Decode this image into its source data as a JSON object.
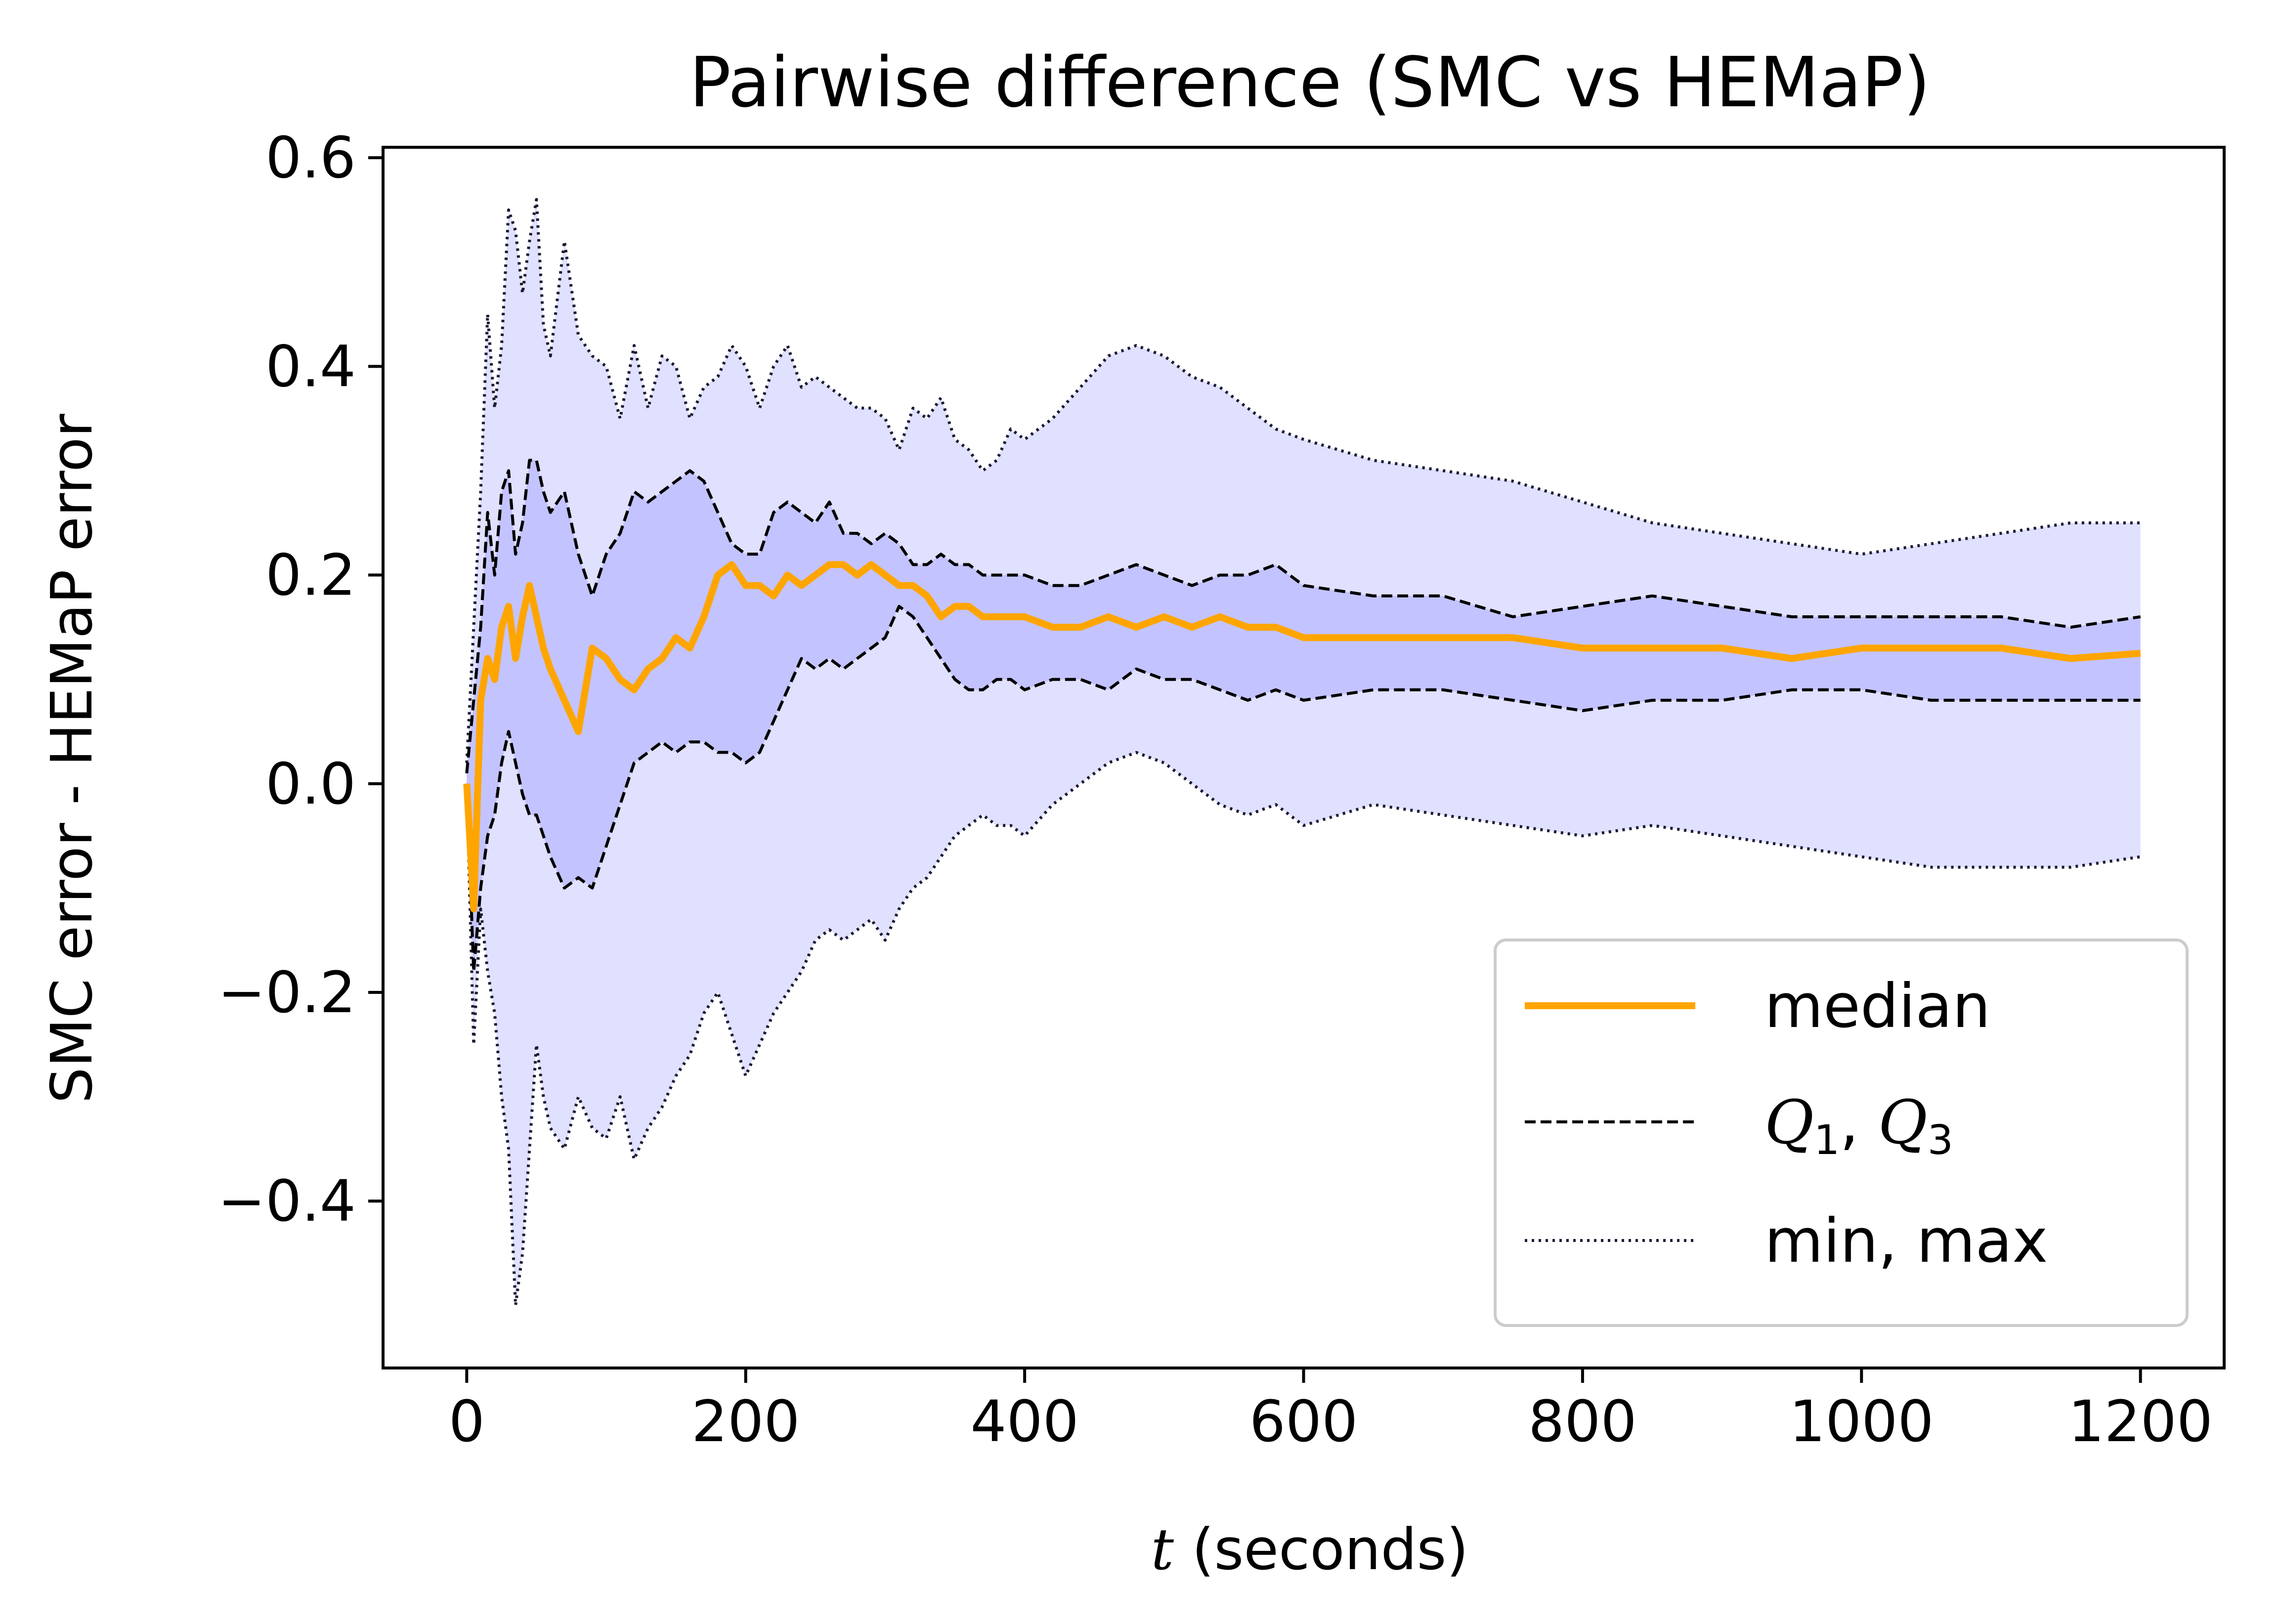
{
  "chart_data": {
    "type": "line",
    "title": "Pairwise difference (SMC vs HEMaP)",
    "xlabel_var": "t",
    "xlabel_rest": " (seconds)",
    "ylabel": "SMC error - HEMaP error",
    "xlim": [
      -60,
      1260
    ],
    "ylim": [
      -0.56,
      0.61
    ],
    "xticks": [
      0,
      200,
      400,
      600,
      800,
      1000,
      1200
    ],
    "xtick_labels": [
      "0",
      "200",
      "400",
      "600",
      "800",
      "1000",
      "1200"
    ],
    "yticks": [
      -0.4,
      -0.2,
      0.0,
      0.2,
      0.4,
      0.6
    ],
    "ytick_labels": [
      "−0.4",
      "−0.2",
      "0.0",
      "0.2",
      "0.4",
      "0.6"
    ],
    "legend": {
      "position": "lower-right",
      "median": "median",
      "quartiles_q": "Q",
      "quartiles_sub1": "1",
      "quartiles_sub3": "3",
      "minmax": "min, max"
    },
    "colors": {
      "median": "#FFA500",
      "iqr_fill": "#C3C3FF",
      "range_fill": "#E0E0FF",
      "quartile_line": "#000000",
      "minmax_line": "#1a1a33"
    },
    "series": [
      {
        "name": "max",
        "x": [
          0,
          5,
          10,
          15,
          20,
          25,
          30,
          35,
          40,
          45,
          50,
          55,
          60,
          70,
          80,
          90,
          100,
          110,
          120,
          130,
          140,
          150,
          160,
          170,
          180,
          190,
          200,
          210,
          220,
          230,
          240,
          250,
          260,
          270,
          280,
          290,
          300,
          310,
          320,
          330,
          340,
          350,
          360,
          370,
          380,
          390,
          400,
          420,
          440,
          460,
          480,
          500,
          520,
          540,
          560,
          580,
          600,
          650,
          700,
          750,
          800,
          850,
          900,
          950,
          1000,
          1050,
          1100,
          1150,
          1200
        ],
        "y": [
          0.02,
          0.15,
          0.28,
          0.45,
          0.36,
          0.42,
          0.55,
          0.53,
          0.47,
          0.52,
          0.56,
          0.44,
          0.41,
          0.52,
          0.43,
          0.41,
          0.4,
          0.35,
          0.42,
          0.36,
          0.41,
          0.4,
          0.35,
          0.38,
          0.39,
          0.42,
          0.4,
          0.36,
          0.4,
          0.42,
          0.38,
          0.39,
          0.38,
          0.37,
          0.36,
          0.36,
          0.35,
          0.32,
          0.36,
          0.35,
          0.37,
          0.33,
          0.32,
          0.3,
          0.31,
          0.34,
          0.33,
          0.35,
          0.38,
          0.41,
          0.42,
          0.41,
          0.39,
          0.38,
          0.36,
          0.34,
          0.33,
          0.31,
          0.3,
          0.29,
          0.27,
          0.25,
          0.24,
          0.23,
          0.22,
          0.23,
          0.24,
          0.25,
          0.25
        ]
      },
      {
        "name": "Q3",
        "x": [
          0,
          5,
          10,
          15,
          20,
          25,
          30,
          35,
          40,
          45,
          50,
          55,
          60,
          70,
          80,
          90,
          100,
          110,
          120,
          130,
          140,
          150,
          160,
          170,
          180,
          190,
          200,
          210,
          220,
          230,
          240,
          250,
          260,
          270,
          280,
          290,
          300,
          310,
          320,
          330,
          340,
          350,
          360,
          370,
          380,
          390,
          400,
          420,
          440,
          460,
          480,
          500,
          520,
          540,
          560,
          580,
          600,
          650,
          700,
          750,
          800,
          850,
          900,
          950,
          1000,
          1050,
          1100,
          1150,
          1200
        ],
        "y": [
          0.01,
          0.08,
          0.15,
          0.26,
          0.2,
          0.28,
          0.3,
          0.22,
          0.25,
          0.31,
          0.31,
          0.28,
          0.26,
          0.28,
          0.22,
          0.18,
          0.22,
          0.24,
          0.28,
          0.27,
          0.28,
          0.29,
          0.3,
          0.29,
          0.26,
          0.23,
          0.22,
          0.22,
          0.26,
          0.27,
          0.26,
          0.25,
          0.27,
          0.24,
          0.24,
          0.23,
          0.24,
          0.23,
          0.21,
          0.21,
          0.22,
          0.21,
          0.21,
          0.2,
          0.2,
          0.2,
          0.2,
          0.19,
          0.19,
          0.2,
          0.21,
          0.2,
          0.19,
          0.2,
          0.2,
          0.21,
          0.19,
          0.18,
          0.18,
          0.16,
          0.17,
          0.18,
          0.17,
          0.16,
          0.16,
          0.16,
          0.16,
          0.15,
          0.16
        ]
      },
      {
        "name": "median",
        "x": [
          0,
          5,
          10,
          15,
          20,
          25,
          30,
          35,
          40,
          45,
          50,
          55,
          60,
          70,
          80,
          90,
          100,
          110,
          120,
          130,
          140,
          150,
          160,
          170,
          180,
          190,
          200,
          210,
          220,
          230,
          240,
          250,
          260,
          270,
          280,
          290,
          300,
          310,
          320,
          330,
          340,
          350,
          360,
          370,
          380,
          390,
          400,
          420,
          440,
          460,
          480,
          500,
          520,
          540,
          560,
          580,
          600,
          650,
          700,
          750,
          800,
          850,
          900,
          950,
          1000,
          1050,
          1100,
          1150,
          1200
        ],
        "y": [
          0.0,
          -0.12,
          0.08,
          0.12,
          0.1,
          0.15,
          0.17,
          0.12,
          0.16,
          0.19,
          0.16,
          0.13,
          0.11,
          0.08,
          0.05,
          0.13,
          0.12,
          0.1,
          0.09,
          0.11,
          0.12,
          0.14,
          0.13,
          0.16,
          0.2,
          0.21,
          0.19,
          0.19,
          0.18,
          0.2,
          0.19,
          0.2,
          0.21,
          0.21,
          0.2,
          0.21,
          0.2,
          0.19,
          0.19,
          0.18,
          0.16,
          0.17,
          0.17,
          0.16,
          0.16,
          0.16,
          0.16,
          0.15,
          0.15,
          0.16,
          0.15,
          0.16,
          0.15,
          0.16,
          0.15,
          0.15,
          0.14,
          0.14,
          0.14,
          0.14,
          0.13,
          0.13,
          0.13,
          0.12,
          0.13,
          0.13,
          0.13,
          0.12,
          0.125
        ]
      },
      {
        "name": "Q1",
        "x": [
          0,
          5,
          10,
          15,
          20,
          25,
          30,
          35,
          40,
          45,
          50,
          55,
          60,
          70,
          80,
          90,
          100,
          110,
          120,
          130,
          140,
          150,
          160,
          170,
          180,
          190,
          200,
          210,
          220,
          230,
          240,
          250,
          260,
          270,
          280,
          290,
          300,
          310,
          320,
          330,
          340,
          350,
          360,
          370,
          380,
          390,
          400,
          420,
          440,
          460,
          480,
          500,
          520,
          540,
          560,
          580,
          600,
          650,
          700,
          750,
          800,
          850,
          900,
          950,
          1000,
          1050,
          1100,
          1150,
          1200
        ],
        "y": [
          0.0,
          -0.18,
          -0.1,
          -0.05,
          -0.03,
          0.02,
          0.05,
          0.02,
          -0.01,
          -0.03,
          -0.03,
          -0.05,
          -0.07,
          -0.1,
          -0.09,
          -0.1,
          -0.06,
          -0.02,
          0.02,
          0.03,
          0.04,
          0.03,
          0.04,
          0.04,
          0.03,
          0.03,
          0.02,
          0.03,
          0.06,
          0.09,
          0.12,
          0.11,
          0.12,
          0.11,
          0.12,
          0.13,
          0.14,
          0.17,
          0.16,
          0.14,
          0.12,
          0.1,
          0.09,
          0.09,
          0.1,
          0.1,
          0.09,
          0.1,
          0.1,
          0.09,
          0.11,
          0.1,
          0.1,
          0.09,
          0.08,
          0.09,
          0.08,
          0.09,
          0.09,
          0.08,
          0.07,
          0.08,
          0.08,
          0.09,
          0.09,
          0.08,
          0.08,
          0.08,
          0.08
        ]
      },
      {
        "name": "min",
        "x": [
          0,
          5,
          10,
          15,
          20,
          25,
          30,
          35,
          40,
          45,
          50,
          55,
          60,
          70,
          80,
          90,
          100,
          110,
          120,
          130,
          140,
          150,
          160,
          170,
          180,
          190,
          200,
          210,
          220,
          230,
          240,
          250,
          260,
          270,
          280,
          290,
          300,
          310,
          320,
          330,
          340,
          350,
          360,
          370,
          380,
          390,
          400,
          420,
          440,
          460,
          480,
          500,
          520,
          540,
          560,
          580,
          600,
          650,
          700,
          750,
          800,
          850,
          900,
          950,
          1000,
          1050,
          1100,
          1150,
          1200
        ],
        "y": [
          0.0,
          -0.25,
          -0.12,
          -0.18,
          -0.22,
          -0.3,
          -0.35,
          -0.5,
          -0.45,
          -0.35,
          -0.25,
          -0.3,
          -0.33,
          -0.35,
          -0.3,
          -0.33,
          -0.34,
          -0.3,
          -0.36,
          -0.33,
          -0.31,
          -0.28,
          -0.26,
          -0.22,
          -0.2,
          -0.24,
          -0.28,
          -0.25,
          -0.22,
          -0.2,
          -0.18,
          -0.15,
          -0.14,
          -0.15,
          -0.14,
          -0.13,
          -0.15,
          -0.12,
          -0.1,
          -0.09,
          -0.07,
          -0.05,
          -0.04,
          -0.03,
          -0.04,
          -0.04,
          -0.05,
          -0.02,
          0.0,
          0.02,
          0.03,
          0.02,
          0.0,
          -0.02,
          -0.03,
          -0.02,
          -0.04,
          -0.02,
          -0.03,
          -0.04,
          -0.05,
          -0.04,
          -0.05,
          -0.06,
          -0.07,
          -0.08,
          -0.08,
          -0.08,
          -0.07
        ]
      }
    ]
  }
}
